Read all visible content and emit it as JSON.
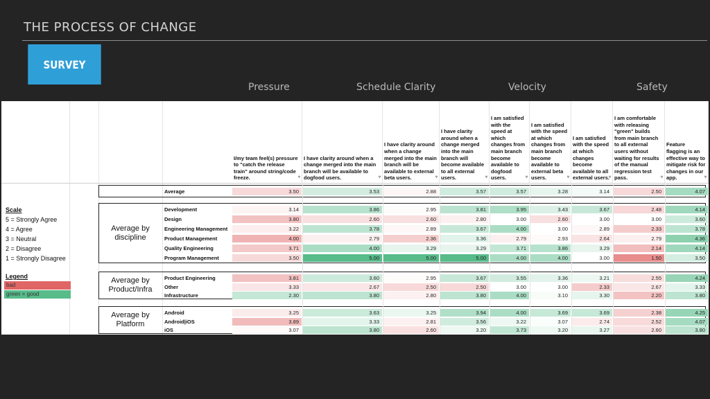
{
  "slide": {
    "title": "THE PROCESS OF CHANGE",
    "badge": "SURVEY"
  },
  "categories": [
    "Pressure",
    "Schedule Clarity",
    "Velocity",
    "Safety"
  ],
  "colors": {
    "bad": "#e06666",
    "good": "#57bb8a",
    "neutral": "#ffffff"
  },
  "scale": {
    "title": "Scale",
    "items": [
      "5 = Strongly Agree",
      "4 = Agree",
      "3 = Neutral",
      "2 = Disagree",
      "1 = Strongly Disagree"
    ]
  },
  "legend": {
    "title": "Legend",
    "bad": "bad",
    "good": "green = good"
  },
  "columns": [
    "I/my team feel(s) pressure to \"catch the release train\" around string/code freeze.",
    "I have clarity around when a change merged into the main branch will be available to dogfood users.",
    "I have clarity around when a change merged into the main branch will be available to external beta users.",
    "I have clarity around when a change merged into the main branch will become available to all external users.",
    "I am satisfied with the speed at which changes from main branch become available to dogfood users.",
    "I am satisfied with the speed at which changes from main branch become available to external beta users.",
    "I am satisfied with the speed at which changes become available to all external users.",
    "I am comfortable with releasing \"green\" builds from main branch to all external users without waiting for results of the manual regression test pass.",
    "Feature flagging is an effective way to mitigate risk for changes in our app."
  ],
  "average": {
    "label": "Average",
    "values": [
      "3.50",
      "3.53",
      "2.88",
      "3.57",
      "3.57",
      "3.28",
      "3.14",
      "2.50",
      "4.07"
    ]
  },
  "groups": [
    {
      "label": "Average by discipline",
      "rows": [
        {
          "label": "Development",
          "values": [
            "3.14",
            "3.86",
            "2.95",
            "3.81",
            "3.95",
            "3.43",
            "3.67",
            "2.48",
            "4.14"
          ]
        },
        {
          "label": "Design",
          "values": [
            "3.80",
            "2.60",
            "2.60",
            "2.80",
            "3.00",
            "2.60",
            "3.00",
            "3.00",
            "3.60"
          ]
        },
        {
          "label": "Engineering Management",
          "values": [
            "3.22",
            "3.78",
            "2.89",
            "3.67",
            "4.00",
            "3.00",
            "2.89",
            "2.33",
            "3.78"
          ]
        },
        {
          "label": "Product Management",
          "values": [
            "4.00",
            "2.79",
            "2.36",
            "3.36",
            "2.79",
            "2.93",
            "2.64",
            "2.79",
            "4.36"
          ]
        },
        {
          "label": "Quality Engineering",
          "values": [
            "3.71",
            "4.00",
            "3.29",
            "3.29",
            "3.71",
            "3.86",
            "3.29",
            "2.14",
            "4.14"
          ]
        },
        {
          "label": "Program Management",
          "values": [
            "3.50",
            "5.00",
            "5.00",
            "5.00",
            "4.00",
            "4.00",
            "3.00",
            "1.50",
            "3.50"
          ]
        }
      ]
    },
    {
      "label": "Average by Product/Infra",
      "rows": [
        {
          "label": "Product Engineering",
          "values": [
            "3.81",
            "3.60",
            "2.95",
            "3.67",
            "3.55",
            "3.36",
            "3.21",
            "2.55",
            "4.24"
          ]
        },
        {
          "label": "Other",
          "values": [
            "3.33",
            "2.67",
            "2.50",
            "2.50",
            "3.00",
            "3.00",
            "2.33",
            "2.67",
            "3.33"
          ]
        },
        {
          "label": "Infrastructure",
          "values": [
            "2.30",
            "3.80",
            "2.80",
            "3.80",
            "4.00",
            "3.10",
            "3.30",
            "2.20",
            "3.80"
          ]
        }
      ]
    },
    {
      "label": "Average by Platform",
      "rows": [
        {
          "label": "Android",
          "values": [
            "3.25",
            "3.63",
            "3.25",
            "3.94",
            "4.00",
            "3.69",
            "3.69",
            "2.38",
            "4.25"
          ]
        },
        {
          "label": "Android|iOS",
          "values": [
            "3.89",
            "3.33",
            "2.81",
            "3.56",
            "3.22",
            "3.07",
            "2.74",
            "2.52",
            "4.07"
          ]
        },
        {
          "label": "iOS",
          "values": [
            "3.07",
            "3.80",
            "2.60",
            "3.20",
            "3.73",
            "3.20",
            "3.27",
            "2.60",
            "3.80"
          ]
        }
      ]
    }
  ]
}
